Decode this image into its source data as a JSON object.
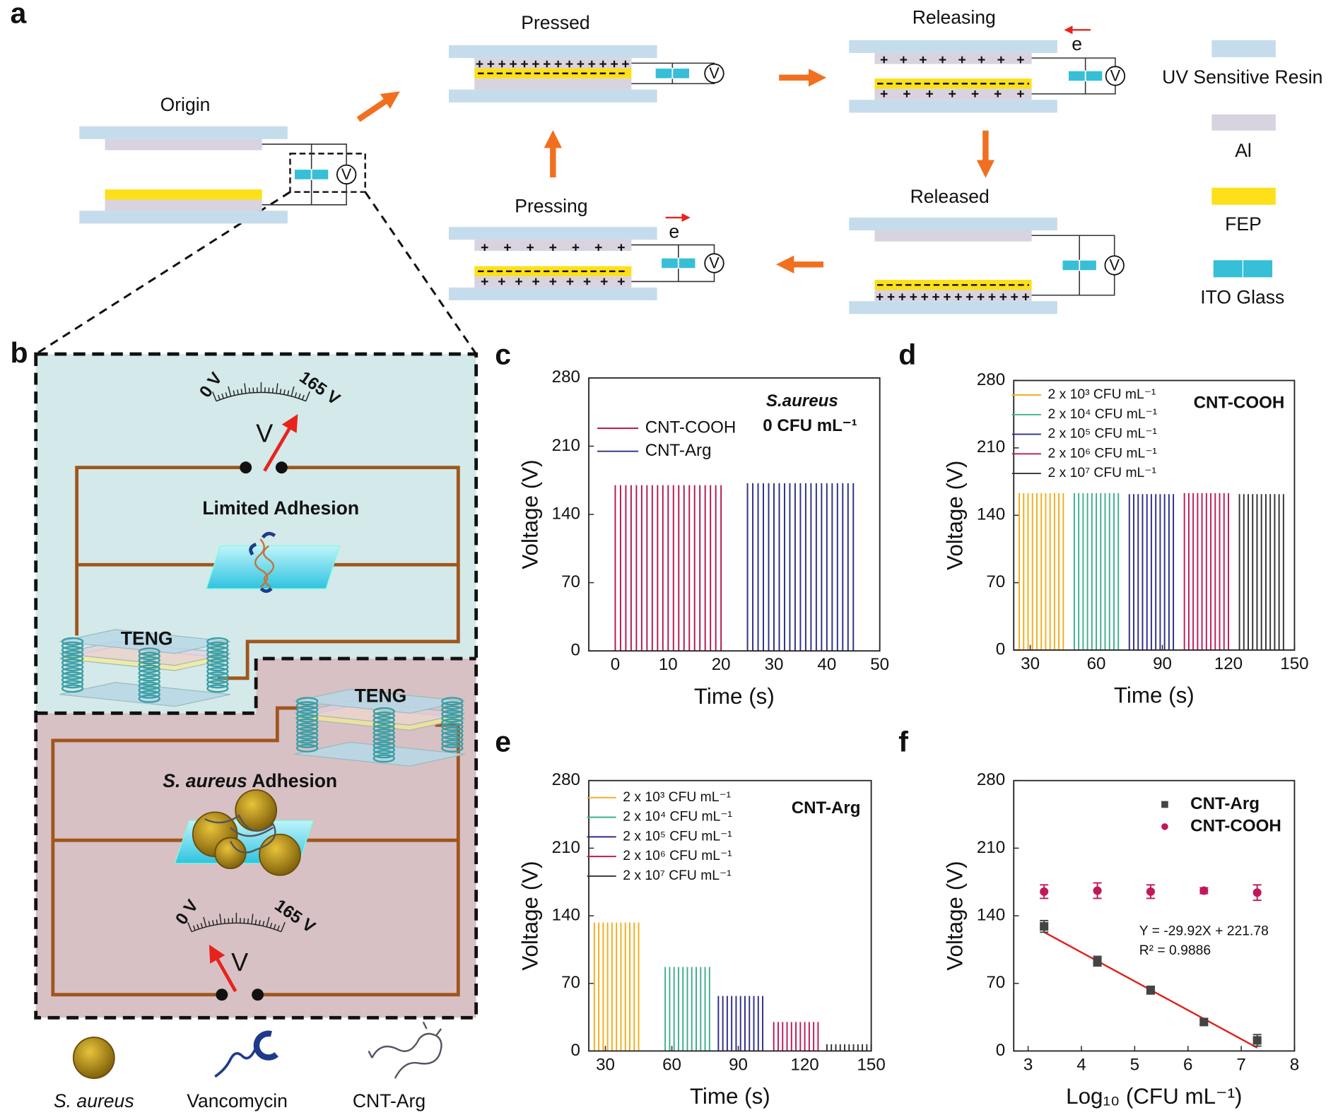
{
  "panel_labels": [
    "a",
    "b",
    "c",
    "d",
    "e",
    "f"
  ],
  "diagram_a": {
    "states": [
      "Origin",
      "Pressed",
      "Releasing",
      "Released",
      "Pressing"
    ],
    "electron": "e",
    "meter": "V",
    "legend": [
      "UV Sensitive Resin",
      "Al",
      "FEP",
      "ITO Glass"
    ]
  },
  "diagram_b": {
    "meter_min": "0 V",
    "meter_max": "165 V",
    "meter": "V",
    "top_label": "Limited Adhesion",
    "teng": "TENG",
    "bottom_label_species": "S. aureus",
    "bottom_label_rest": " Adhesion",
    "legend": [
      "S. aureus",
      "Vancomycin",
      "CNT-Arg"
    ]
  },
  "chart_data": [
    {
      "type": "pulse",
      "series": [
        {
          "name": "CNT-COOH",
          "color": "#b5174f",
          "x": [
            0,
            1,
            2,
            3,
            4,
            5,
            6,
            7,
            8,
            9,
            10,
            11,
            12,
            13,
            14,
            15,
            16,
            17,
            18,
            19,
            20
          ],
          "values": [
            170,
            170,
            170,
            170,
            170,
            170,
            170,
            170,
            170,
            170,
            170,
            170,
            170,
            170,
            170,
            170,
            170,
            170,
            170,
            170,
            170
          ]
        },
        {
          "name": "CNT-Arg",
          "color": "#2b2f86",
          "x": [
            25,
            26,
            27,
            28,
            29,
            30,
            31,
            32,
            33,
            34,
            35,
            36,
            37,
            38,
            39,
            40,
            41,
            42,
            43,
            44,
            45
          ],
          "values": [
            172,
            172,
            172,
            172,
            172,
            172,
            172,
            172,
            172,
            172,
            172,
            172,
            172,
            172,
            172,
            172,
            172,
            172,
            172,
            172,
            172
          ]
        }
      ],
      "xlim": [
        -5,
        50
      ],
      "xticks": [
        0,
        10,
        20,
        30,
        40,
        50
      ],
      "ylim": [
        0,
        280
      ],
      "yticks": [
        0,
        70,
        140,
        210,
        280
      ],
      "xlabel": "Time (s)",
      "ylabel": "Voltage (V)",
      "annotations": [
        "S.aureus",
        "0 CFU mL⁻¹"
      ]
    },
    {
      "type": "pulse",
      "series": [
        {
          "name": "2 x 10³ CFU mL⁻¹",
          "color": "#f2ad1c",
          "x": [
            25,
            27,
            29,
            31,
            33,
            35,
            37,
            39,
            41,
            43,
            45
          ],
          "values": [
            163,
            163,
            163,
            163,
            163,
            163,
            163,
            163,
            163,
            163,
            163
          ]
        },
        {
          "name": "2 x 10⁴ CFU mL⁻¹",
          "color": "#3fae8e",
          "x": [
            50,
            52,
            54,
            56,
            58,
            60,
            62,
            64,
            66,
            68,
            70
          ],
          "values": [
            163,
            163,
            163,
            163,
            163,
            163,
            163,
            163,
            163,
            163,
            163
          ]
        },
        {
          "name": "2 x 10⁵ CFU mL⁻¹",
          "color": "#2e2d8a",
          "x": [
            75,
            77,
            79,
            81,
            83,
            85,
            87,
            89,
            91,
            93,
            95
          ],
          "values": [
            162,
            162,
            162,
            162,
            162,
            162,
            162,
            162,
            162,
            162,
            162
          ]
        },
        {
          "name": "2 x 10⁶ CFU mL⁻¹",
          "color": "#c0185a",
          "x": [
            100,
            102,
            104,
            106,
            108,
            110,
            112,
            114,
            116,
            118,
            120
          ],
          "values": [
            163,
            163,
            163,
            163,
            163,
            163,
            163,
            163,
            163,
            163,
            163
          ]
        },
        {
          "name": "2 x 10⁷ CFU mL⁻¹",
          "color": "#333333",
          "x": [
            125,
            127,
            129,
            131,
            133,
            135,
            137,
            139,
            141,
            143,
            145
          ],
          "values": [
            162,
            162,
            162,
            162,
            162,
            162,
            162,
            162,
            162,
            162,
            162
          ]
        }
      ],
      "xlim": [
        22.5,
        150
      ],
      "xticks": [
        30,
        60,
        90,
        120,
        150
      ],
      "ylim": [
        0,
        280
      ],
      "yticks": [
        0,
        70,
        140,
        210,
        280
      ],
      "xlabel": "Time (s)",
      "ylabel": "Voltage (V)",
      "annotations": [
        "CNT-COOH"
      ]
    },
    {
      "type": "pulse",
      "series": [
        {
          "name": "2 x 10³ CFU mL⁻¹",
          "color": "#f2ad1c",
          "x": [
            25,
            27,
            29,
            31,
            33,
            35,
            37,
            39,
            41,
            43,
            45
          ],
          "values": [
            133,
            133,
            133,
            133,
            133,
            133,
            133,
            133,
            133,
            133,
            133
          ]
        },
        {
          "name": "2 x 10⁴ CFU mL⁻¹",
          "color": "#3fae8e",
          "x": [
            57,
            59,
            61,
            63,
            65,
            67,
            69,
            71,
            73,
            75,
            77
          ],
          "values": [
            87,
            87,
            87,
            87,
            87,
            87,
            87,
            87,
            87,
            87,
            87
          ]
        },
        {
          "name": "2 x 10⁵ CFU mL⁻¹",
          "color": "#2e2d8a",
          "x": [
            81,
            83,
            85,
            87,
            89,
            91,
            93,
            95,
            97,
            99,
            101
          ],
          "values": [
            57,
            57,
            57,
            57,
            57,
            57,
            57,
            57,
            57,
            57,
            57
          ]
        },
        {
          "name": "2 x 10⁶ CFU mL⁻¹",
          "color": "#c0185a",
          "x": [
            106,
            108,
            110,
            112,
            114,
            116,
            118,
            120,
            122,
            124,
            126
          ],
          "values": [
            30,
            30,
            30,
            30,
            30,
            30,
            30,
            30,
            30,
            30,
            30
          ]
        },
        {
          "name": "2 x 10⁷ CFU mL⁻¹",
          "color": "#333333",
          "x": [
            130,
            132,
            134,
            136,
            138,
            140,
            142,
            144,
            146,
            148,
            150
          ],
          "values": [
            7,
            7,
            7,
            7,
            7,
            7,
            7,
            7,
            7,
            7,
            7
          ]
        }
      ],
      "xlim": [
        22.5,
        150
      ],
      "xticks": [
        30,
        60,
        90,
        120,
        150
      ],
      "ylim": [
        0,
        280
      ],
      "yticks": [
        0,
        70,
        140,
        210,
        280
      ],
      "xlabel": "Time (s)",
      "ylabel": "Voltage (V)",
      "annotations": [
        "CNT-Arg"
      ]
    },
    {
      "type": "scatter",
      "series": [
        {
          "name": "CNT-Arg",
          "color": "#444444",
          "marker": "square",
          "x": [
            3.3,
            4.3,
            5.3,
            6.3,
            7.3
          ],
          "values": [
            129,
            93,
            63,
            30,
            11
          ],
          "errors": [
            6,
            5,
            4,
            3,
            6
          ]
        },
        {
          "name": "CNT-COOH",
          "color": "#c0185a",
          "marker": "circle",
          "x": [
            3.3,
            4.3,
            5.3,
            6.3,
            7.3
          ],
          "values": [
            165,
            166,
            165,
            166,
            164
          ],
          "errors": [
            7,
            8,
            7,
            3,
            8
          ]
        }
      ],
      "fit": {
        "slope": -29.92,
        "intercept": 221.78,
        "color": "#e0201b"
      },
      "xlim": [
        2.73,
        8
      ],
      "xticks": [
        3,
        4,
        5,
        6,
        7,
        8
      ],
      "ylim": [
        0,
        280
      ],
      "yticks": [
        0,
        70,
        140,
        210,
        280
      ],
      "xlabel": "Log₁₀ (CFU  mL⁻¹)",
      "ylabel": "Voltage (V)",
      "annotations": [
        "Y = -29.92X + 221.78",
        "R² = 0.9886"
      ]
    }
  ]
}
